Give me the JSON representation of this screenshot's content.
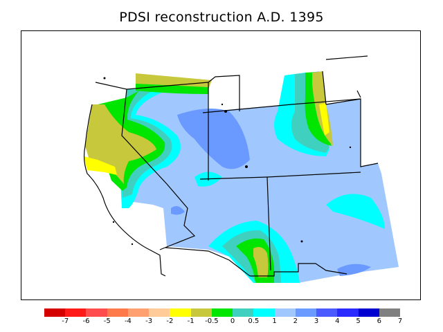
{
  "title": "PDSI reconstruction A.D. 1395",
  "legend": {
    "colors": [
      "#d40000",
      "#ff1a1a",
      "#ff4d4d",
      "#ff7a4a",
      "#ffa070",
      "#ffcc99",
      "#ffff00",
      "#c8c83c",
      "#00e600",
      "#40d0c0",
      "#00ffff",
      "#a0c8ff",
      "#6a99ff",
      "#4a5aff",
      "#2a2aff",
      "#0000d0",
      "#808080"
    ],
    "labels": [
      "-7",
      "-6",
      "-5",
      "-4",
      "-3",
      "-2",
      "-1",
      "-0.5",
      "0",
      "0.5",
      "1",
      "2",
      "3",
      "4",
      "5",
      "6",
      "7"
    ]
  },
  "fill_colors": {
    "dry_strong": "#ffff00",
    "dry": "#c8c83c",
    "neutral": "#00e600",
    "near_normal": "#40d0c0",
    "slightly_wet": "#00ffff",
    "wet": "#a0c8ff",
    "wetter": "#6a99ff"
  }
}
